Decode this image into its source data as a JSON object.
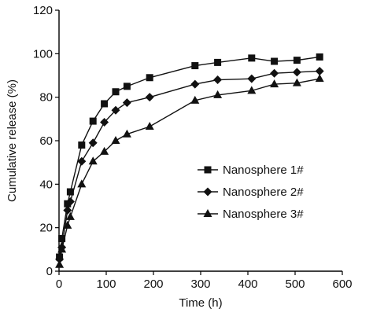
{
  "chart_data": {
    "type": "line",
    "title": "",
    "xlabel": "Time (h)",
    "ylabel": "Cumulative release (%)",
    "xlim": [
      0,
      600
    ],
    "ylim": [
      0,
      120
    ],
    "xticks": [
      0,
      100,
      200,
      300,
      400,
      500,
      600
    ],
    "yticks": [
      0,
      20,
      40,
      60,
      80,
      100,
      120
    ],
    "grid": false,
    "legend_position": "center-right",
    "series": [
      {
        "name": "Nanosphere 1#",
        "marker": "square",
        "x": [
          1,
          6,
          18,
          24,
          48,
          72,
          96,
          120,
          144,
          192,
          288,
          336,
          408,
          456,
          504,
          552
        ],
        "y": [
          6.5,
          15,
          31,
          36.5,
          58,
          69,
          77,
          82.5,
          85,
          89,
          94.5,
          96,
          98,
          96.5,
          97,
          98.5
        ]
      },
      {
        "name": "Nanosphere 2#",
        "marker": "diamond",
        "x": [
          1,
          6,
          18,
          24,
          48,
          72,
          96,
          120,
          144,
          192,
          288,
          336,
          408,
          456,
          504,
          552
        ],
        "y": [
          5.5,
          11,
          28,
          32,
          50.5,
          59,
          68.5,
          74,
          77.5,
          80,
          86,
          88,
          88.5,
          91,
          91.5,
          92
        ]
      },
      {
        "name": "Nanosphere 3#",
        "marker": "triangle",
        "x": [
          1,
          6,
          18,
          24,
          48,
          72,
          96,
          120,
          144,
          192,
          288,
          336,
          408,
          456,
          504,
          552
        ],
        "y": [
          3,
          10,
          21,
          25,
          40,
          50.5,
          55,
          60,
          63,
          66.5,
          78.5,
          81,
          83,
          86,
          86.5,
          88.5
        ]
      }
    ]
  }
}
